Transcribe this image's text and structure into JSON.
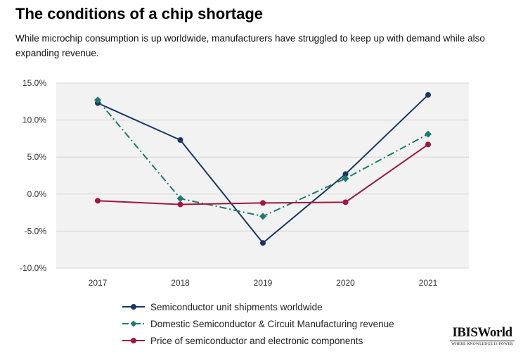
{
  "header": {
    "title": "The conditions of a chip shortage",
    "subtitle": "While microchip consumption is up worldwide, manufacturers have struggled to keep up with demand while also expanding revenue."
  },
  "brand": {
    "name": "IBISWorld",
    "tagline": "WHERE KNOWLEDGE IS POWER"
  },
  "chart_data": {
    "type": "line",
    "title": "The conditions of a chip shortage",
    "categories": [
      "2017",
      "2018",
      "2019",
      "2020",
      "2021"
    ],
    "ylim": [
      -10,
      15
    ],
    "yticks": [
      15,
      10,
      5,
      0,
      -5,
      -10
    ],
    "ytick_labels": [
      "15.0%",
      "10.0%",
      "5.0%",
      "0.0%",
      "-5.0%",
      "-10.0%"
    ],
    "grid": true,
    "legend": "bottom",
    "series": [
      {
        "name": "Semiconductor unit shipments worldwide",
        "color": "#1a3763",
        "style": "solid",
        "marker": "circle",
        "values": [
          12.3,
          7.3,
          -6.6,
          2.7,
          13.4
        ]
      },
      {
        "name": "Domestic Semiconductor & Circuit Manufacturing revenue",
        "color": "#1b7a6e",
        "style": "dashdot",
        "marker": "diamond",
        "values": [
          12.7,
          -0.6,
          -3.0,
          2.1,
          8.1
        ]
      },
      {
        "name": "Price of semiconductor and electronic components",
        "color": "#a0173e",
        "style": "solid",
        "marker": "circle",
        "values": [
          -0.9,
          -1.4,
          -1.2,
          -1.1,
          6.7
        ]
      }
    ]
  }
}
